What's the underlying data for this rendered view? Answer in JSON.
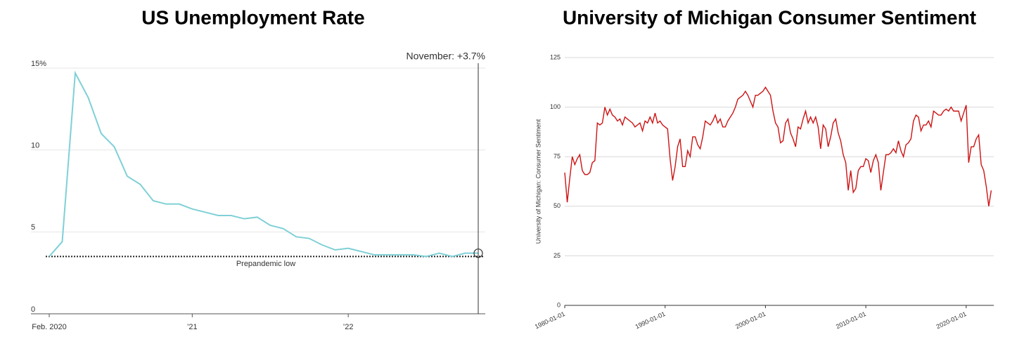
{
  "chart_data": [
    {
      "type": "line",
      "title": "US Unemployment Rate",
      "annotation": "November: +3.7%",
      "reference": {
        "value": 3.5,
        "label": "Prepandemic low"
      },
      "categories": [
        "Feb. 2020",
        null,
        null,
        null,
        null,
        null,
        null,
        null,
        null,
        null,
        null,
        "’21",
        null,
        null,
        null,
        null,
        null,
        null,
        null,
        null,
        null,
        null,
        null,
        "’22",
        null,
        null,
        null,
        null,
        null,
        null,
        null,
        null,
        null,
        null
      ],
      "series": [
        {
          "name": "Unemployment rate",
          "color": "#7fd0d6",
          "values": [
            3.5,
            4.4,
            14.7,
            13.2,
            11.0,
            10.2,
            8.4,
            7.9,
            6.9,
            6.7,
            6.7,
            6.4,
            6.2,
            6.0,
            6.0,
            5.8,
            5.9,
            5.4,
            5.2,
            4.7,
            4.6,
            4.2,
            3.9,
            4.0,
            3.8,
            3.6,
            3.6,
            3.6,
            3.6,
            3.5,
            3.7,
            3.5,
            3.7,
            3.7
          ]
        }
      ],
      "ylim": [
        0,
        15
      ],
      "yticks": [
        {
          "value": 15,
          "label": "15%"
        },
        10,
        5,
        0
      ],
      "grid": true
    },
    {
      "type": "line",
      "title": "University of Michigan Consumer Sentiment",
      "ylabel": "University of Michigan: Consumer Sentiment",
      "x": [
        "1980-01-01",
        "1980-04-01",
        "1980-07-01",
        "1980-10-01",
        "1981-01-01",
        "1981-04-01",
        "1981-07-01",
        "1981-10-01",
        "1982-01-01",
        "1982-04-01",
        "1982-07-01",
        "1982-10-01",
        "1983-01-01",
        "1983-04-01",
        "1983-07-01",
        "1983-10-01",
        "1984-01-01",
        "1984-04-01",
        "1984-07-01",
        "1984-10-01",
        "1985-01-01",
        "1985-04-01",
        "1985-07-01",
        "1985-10-01",
        "1986-01-01",
        "1986-04-01",
        "1986-07-01",
        "1986-10-01",
        "1987-01-01",
        "1987-04-01",
        "1987-07-01",
        "1987-10-01",
        "1988-01-01",
        "1988-04-01",
        "1988-07-01",
        "1988-10-01",
        "1989-01-01",
        "1989-04-01",
        "1989-07-01",
        "1989-10-01",
        "1990-01-01",
        "1990-04-01",
        "1990-07-01",
        "1990-10-01",
        "1991-01-01",
        "1991-04-01",
        "1991-07-01",
        "1991-10-01",
        "1992-01-01",
        "1992-04-01",
        "1992-07-01",
        "1992-10-01",
        "1993-01-01",
        "1993-04-01",
        "1993-07-01",
        "1993-10-01",
        "1994-01-01",
        "1994-04-01",
        "1994-07-01",
        "1994-10-01",
        "1995-01-01",
        "1995-04-01",
        "1995-07-01",
        "1995-10-01",
        "1996-01-01",
        "1996-04-01",
        "1996-07-01",
        "1996-10-01",
        "1997-01-01",
        "1997-04-01",
        "1997-07-01",
        "1997-10-01",
        "1998-01-01",
        "1998-04-01",
        "1998-07-01",
        "1998-10-01",
        "1999-01-01",
        "1999-04-01",
        "1999-07-01",
        "1999-10-01",
        "2000-01-01",
        "2000-04-01",
        "2000-07-01",
        "2000-10-01",
        "2001-01-01",
        "2001-04-01",
        "2001-07-01",
        "2001-10-01",
        "2002-01-01",
        "2002-04-01",
        "2002-07-01",
        "2002-10-01",
        "2003-01-01",
        "2003-04-01",
        "2003-07-01",
        "2003-10-01",
        "2004-01-01",
        "2004-04-01",
        "2004-07-01",
        "2004-10-01",
        "2005-01-01",
        "2005-04-01",
        "2005-07-01",
        "2005-10-01",
        "2006-01-01",
        "2006-04-01",
        "2006-07-01",
        "2006-10-01",
        "2007-01-01",
        "2007-04-01",
        "2007-07-01",
        "2007-10-01",
        "2008-01-01",
        "2008-04-01",
        "2008-07-01",
        "2008-10-01",
        "2009-01-01",
        "2009-04-01",
        "2009-07-01",
        "2009-10-01",
        "2010-01-01",
        "2010-04-01",
        "2010-07-01",
        "2010-10-01",
        "2011-01-01",
        "2011-04-01",
        "2011-07-01",
        "2011-10-01",
        "2012-01-01",
        "2012-04-01",
        "2012-07-01",
        "2012-10-01",
        "2013-01-01",
        "2013-04-01",
        "2013-07-01",
        "2013-10-01",
        "2014-01-01",
        "2014-04-01",
        "2014-07-01",
        "2014-10-01",
        "2015-01-01",
        "2015-04-01",
        "2015-07-01",
        "2015-10-01",
        "2016-01-01",
        "2016-04-01",
        "2016-07-01",
        "2016-10-01",
        "2017-01-01",
        "2017-04-01",
        "2017-07-01",
        "2017-10-01",
        "2018-01-01",
        "2018-04-01",
        "2018-07-01",
        "2018-10-01",
        "2019-01-01",
        "2019-04-01",
        "2019-07-01",
        "2019-10-01",
        "2020-01-01",
        "2020-04-01",
        "2020-07-01",
        "2020-10-01",
        "2021-01-01",
        "2021-04-01",
        "2021-07-01",
        "2021-10-01",
        "2022-01-01",
        "2022-04-01",
        "2022-07-01"
      ],
      "series": [
        {
          "name": "University of Michigan: Consumer Sentiment",
          "color": "#cc1414",
          "values": [
            67,
            52,
            64,
            75,
            71,
            74,
            76,
            68,
            66,
            66,
            67,
            72,
            73,
            92,
            91,
            92,
            100,
            96,
            99,
            96,
            95,
            93,
            94,
            91,
            95,
            94,
            93,
            92,
            90,
            91,
            92,
            88,
            93,
            92,
            95,
            92,
            97,
            92,
            93,
            91,
            90,
            89,
            74,
            63,
            70,
            80,
            84,
            70,
            70,
            78,
            75,
            85,
            85,
            81,
            79,
            85,
            93,
            92,
            91,
            93,
            96,
            92,
            94,
            90,
            90,
            93,
            95,
            97,
            100,
            104,
            105,
            106,
            108,
            106,
            103,
            100,
            106,
            106,
            107,
            108,
            110,
            108,
            106,
            98,
            92,
            90,
            82,
            83,
            92,
            94,
            87,
            84,
            80,
            90,
            89,
            94,
            98,
            92,
            95,
            92,
            95,
            90,
            79,
            91,
            89,
            80,
            85,
            92,
            94,
            87,
            83,
            76,
            72,
            58,
            68,
            57,
            59,
            68,
            70,
            70,
            74,
            73,
            67,
            73,
            76,
            72,
            58,
            67,
            76,
            76,
            77,
            79,
            77,
            83,
            78,
            75,
            81,
            82,
            84,
            93,
            96,
            95,
            88,
            91,
            91,
            93,
            90,
            98,
            97,
            96,
            96,
            98,
            99,
            98,
            100,
            98,
            98,
            98,
            93,
            97,
            101,
            72,
            80,
            80,
            84,
            86,
            71,
            68,
            60,
            50,
            58
          ]
        }
      ],
      "xlim": [
        "1980-01-01",
        "2022-10-01"
      ],
      "xticks": [
        "1980-01-01",
        "1990-01-01",
        "2000-01-01",
        "2010-01-01",
        "2020-01-01"
      ],
      "ylim": [
        0,
        125
      ],
      "yticks": [
        0,
        25,
        50,
        75,
        100,
        125
      ],
      "grid": true
    }
  ]
}
